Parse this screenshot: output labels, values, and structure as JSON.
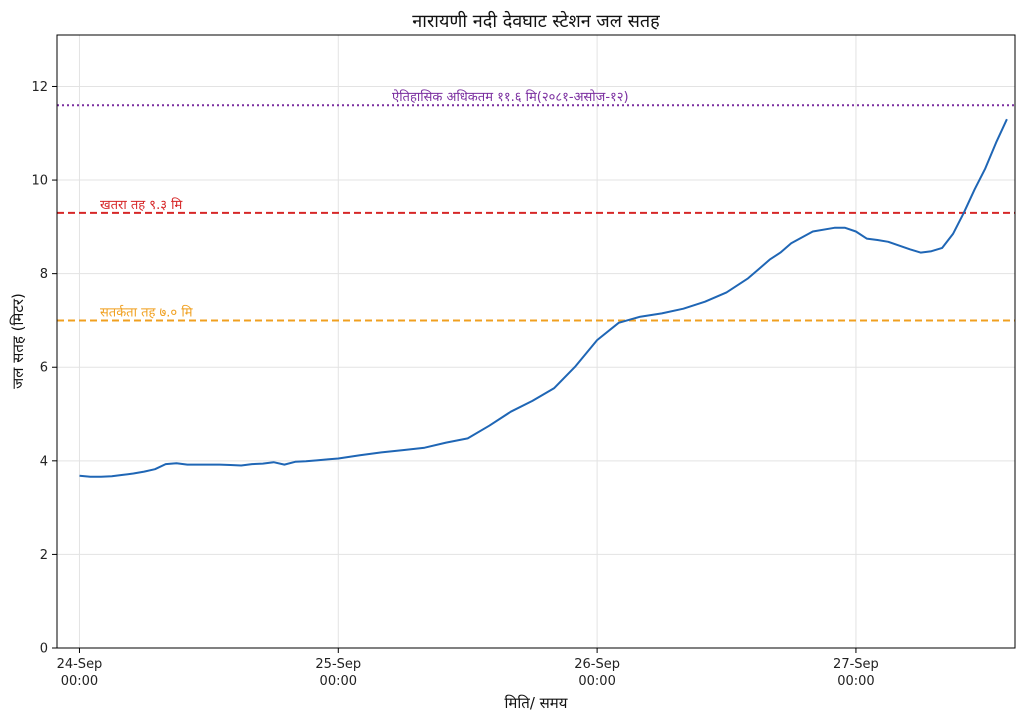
{
  "chart_data": {
    "type": "line",
    "title": "नारायणी नदी देवघाट स्टेशन जल सतह",
    "xlabel": "मिति/ समय",
    "ylabel": "जल सतह (मिटर)",
    "ylim": [
      0,
      13.1
    ],
    "xlim": [
      "2024-09-23T21:55",
      "2024-09-27T14:45"
    ],
    "yticks": [
      0,
      2,
      4,
      6,
      8,
      10,
      12
    ],
    "xticks": [
      {
        "value": "2024-09-24T00:00",
        "label_line1": "24-Sep",
        "label_line2": "00:00"
      },
      {
        "value": "2024-09-25T00:00",
        "label_line1": "25-Sep",
        "label_line2": "00:00"
      },
      {
        "value": "2024-09-26T00:00",
        "label_line1": "26-Sep",
        "label_line2": "00:00"
      },
      {
        "value": "2024-09-27T00:00",
        "label_line1": "27-Sep",
        "label_line2": "00:00"
      }
    ],
    "grid": true,
    "reference_lines": [
      {
        "label": "ऐतिहासिक अधिकतम ११.६ मि(२०८१-असोज-१२)",
        "value": 11.6,
        "color": "#7b2fa0",
        "style": "dotted"
      },
      {
        "label": "खतरा तह ९.३ मि",
        "value": 9.3,
        "color": "#d62728",
        "style": "dashed"
      },
      {
        "label": "सतर्कता तह ७.० मि",
        "value": 7.0,
        "color": "#f0a020",
        "style": "dashed"
      }
    ],
    "series": [
      {
        "color": "#1f66b5",
        "x": [
          "2024-09-24T00:00",
          "2024-09-24T01:00",
          "2024-09-24T02:00",
          "2024-09-24T03:00",
          "2024-09-24T04:00",
          "2024-09-24T05:00",
          "2024-09-24T06:00",
          "2024-09-24T07:00",
          "2024-09-24T08:00",
          "2024-09-24T09:00",
          "2024-09-24T10:00",
          "2024-09-24T11:00",
          "2024-09-24T12:00",
          "2024-09-24T13:00",
          "2024-09-24T14:00",
          "2024-09-24T15:00",
          "2024-09-24T16:00",
          "2024-09-24T17:00",
          "2024-09-24T18:00",
          "2024-09-24T19:00",
          "2024-09-24T20:00",
          "2024-09-24T21:00",
          "2024-09-24T22:00",
          "2024-09-24T23:00",
          "2024-09-25T00:00",
          "2024-09-25T02:00",
          "2024-09-25T04:00",
          "2024-09-25T06:00",
          "2024-09-25T08:00",
          "2024-09-25T10:00",
          "2024-09-25T12:00",
          "2024-09-25T14:00",
          "2024-09-25T16:00",
          "2024-09-25T18:00",
          "2024-09-25T20:00",
          "2024-09-25T22:00",
          "2024-09-26T00:00",
          "2024-09-26T02:00",
          "2024-09-26T04:00",
          "2024-09-26T06:00",
          "2024-09-26T08:00",
          "2024-09-26T10:00",
          "2024-09-26T12:00",
          "2024-09-26T14:00",
          "2024-09-26T15:00",
          "2024-09-26T16:00",
          "2024-09-26T17:00",
          "2024-09-26T18:00",
          "2024-09-26T20:00",
          "2024-09-26T22:00",
          "2024-09-26T23:00",
          "2024-09-27T00:00",
          "2024-09-27T01:00",
          "2024-09-27T02:00",
          "2024-09-27T03:00",
          "2024-09-27T04:00",
          "2024-09-27T05:00",
          "2024-09-27T06:00",
          "2024-09-27T07:00",
          "2024-09-27T08:00",
          "2024-09-27T09:00",
          "2024-09-27T10:00",
          "2024-09-27T11:00",
          "2024-09-27T12:00",
          "2024-09-27T13:00",
          "2024-09-27T14:00"
        ],
        "y": [
          3.68,
          3.66,
          3.66,
          3.67,
          3.7,
          3.73,
          3.77,
          3.82,
          3.93,
          3.95,
          3.92,
          3.92,
          3.92,
          3.92,
          3.91,
          3.9,
          3.93,
          3.94,
          3.97,
          3.92,
          3.98,
          3.99,
          4.01,
          4.03,
          4.05,
          4.12,
          4.18,
          4.23,
          4.28,
          4.39,
          4.48,
          4.75,
          5.05,
          5.28,
          5.55,
          6.02,
          6.58,
          6.95,
          7.08,
          7.15,
          7.25,
          7.4,
          7.6,
          7.9,
          8.1,
          8.3,
          8.45,
          8.65,
          8.9,
          8.98,
          8.98,
          8.9,
          8.75,
          8.72,
          8.68,
          8.6,
          8.52,
          8.45,
          8.48,
          8.55,
          8.85,
          9.3,
          9.8,
          10.25,
          10.8,
          11.3
        ]
      }
    ]
  }
}
